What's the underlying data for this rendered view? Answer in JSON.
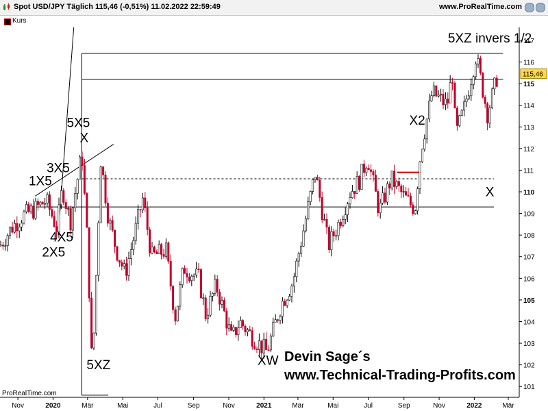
{
  "header": {
    "title": "Spot USD/JPY Täglich 115,46 (-0,51%) 11.02.2022 22:59:49",
    "site": "www.ProRealTime.com"
  },
  "legend": {
    "label": "Kurs"
  },
  "footer": {
    "source": "ProRealTime.com"
  },
  "colors": {
    "up": "#000000",
    "down": "#c0002a",
    "support": "#d00000",
    "axis": "#000000"
  },
  "chart_data": {
    "type": "candlestick",
    "x_tick_labels": [
      "Nov",
      "2020",
      "Mär",
      "Mai",
      "Jul",
      "Sep",
      "Nov",
      "2021",
      "Mär",
      "Mai",
      "Jul",
      "Sep",
      "Nov",
      "2022",
      "Mär"
    ],
    "y_tick_labels": [
      "101",
      "102",
      "103",
      "104",
      "105",
      "106",
      "107",
      "108",
      "109",
      "110",
      "111",
      "112",
      "113",
      "114",
      "115",
      "116",
      "117"
    ],
    "bold_y_ticks": [
      "105",
      "110",
      "115"
    ],
    "ylim": [
      100.5,
      117.6
    ],
    "xlim": [
      "2019-10-01",
      "2022-03-20"
    ],
    "current_price": "115,46",
    "price_path": [
      [
        "2019-10-01",
        107.5
      ],
      [
        "2019-10-20",
        108.3
      ],
      [
        "2019-11-10",
        108.9
      ],
      [
        "2019-12-01",
        109.2
      ],
      [
        "2019-12-20",
        109.6
      ],
      [
        "2020-01-08",
        108.3
      ],
      [
        "2020-01-17",
        110.2
      ],
      [
        "2020-01-31",
        108.6
      ],
      [
        "2020-02-20",
        111.8
      ],
      [
        "2020-03-01",
        107.5
      ],
      [
        "2020-03-09",
        101.6
      ],
      [
        "2020-03-24",
        111.5
      ],
      [
        "2020-04-06",
        108.8
      ],
      [
        "2020-04-20",
        107.3
      ],
      [
        "2020-05-05",
        106.2
      ],
      [
        "2020-05-15",
        107.3
      ],
      [
        "2020-06-05",
        109.7
      ],
      [
        "2020-06-20",
        107.0
      ],
      [
        "2020-07-15",
        107.3
      ],
      [
        "2020-07-31",
        104.2
      ],
      [
        "2020-08-15",
        106.5
      ],
      [
        "2020-09-10",
        106.0
      ],
      [
        "2020-09-22",
        104.3
      ],
      [
        "2020-10-10",
        105.7
      ],
      [
        "2020-11-06",
        103.2
      ],
      [
        "2020-11-20",
        104.0
      ],
      [
        "2020-12-15",
        103.2
      ],
      [
        "2021-01-06",
        102.6
      ],
      [
        "2021-01-31",
        104.8
      ],
      [
        "2021-02-20",
        105.8
      ],
      [
        "2021-03-31",
        110.9
      ],
      [
        "2021-04-23",
        107.5
      ],
      [
        "2021-05-10",
        108.5
      ],
      [
        "2021-05-31",
        110.0
      ],
      [
        "2021-06-15",
        110.5
      ],
      [
        "2021-06-30",
        111.6
      ],
      [
        "2021-07-20",
        109.1
      ],
      [
        "2021-08-10",
        110.6
      ],
      [
        "2021-08-31",
        109.8
      ],
      [
        "2021-09-20",
        109.2
      ],
      [
        "2021-09-30",
        111.9
      ],
      [
        "2021-10-20",
        114.6
      ],
      [
        "2021-11-15",
        114.0
      ],
      [
        "2021-11-24",
        115.5
      ],
      [
        "2021-11-30",
        112.6
      ],
      [
        "2021-12-15",
        113.9
      ],
      [
        "2022-01-04",
        116.3
      ],
      [
        "2022-01-24",
        113.6
      ],
      [
        "2022-02-11",
        115.46
      ]
    ],
    "annotations": [
      {
        "text": "5XZ invers 1/2",
        "x": "2022-01-28",
        "y": 116.9
      },
      {
        "text": "X2",
        "x": "2021-09-24",
        "y": 113.1
      },
      {
        "text": "X",
        "x": "2022-01-28",
        "y": 109.8
      },
      {
        "text": "X",
        "x": "2020-02-24",
        "y": 112.3
      },
      {
        "text": "5X5",
        "x": "2020-02-14",
        "y": 113.0
      },
      {
        "text": "3X5",
        "x": "2020-01-10",
        "y": 110.9
      },
      {
        "text": "1X5",
        "x": "2019-12-10",
        "y": 110.3
      },
      {
        "text": "4X5",
        "x": "2020-01-16",
        "y": 107.7
      },
      {
        "text": "2X5",
        "x": "2020-01-02",
        "y": 107.0
      },
      {
        "text": "5XZ",
        "x": "2020-03-20",
        "y": 101.8
      },
      {
        "text": "XW",
        "x": "2021-01-08",
        "y": 102.0
      }
    ],
    "watermark": [
      "Devin Sage´s",
      "www.Technical-Trading-Profits.com"
    ],
    "horizontal_lines": [
      {
        "y": 116.4,
        "from": "2020-02-20",
        "to": "2022-02-20"
      },
      {
        "y": 115.2,
        "from": "2020-02-20",
        "to": "2022-02-20"
      },
      {
        "y": 109.3,
        "from": "2019-12-01",
        "to": "2022-02-04"
      },
      {
        "y": 110.6,
        "from": "2020-02-20",
        "to": "2022-02-04",
        "dashed": true
      },
      {
        "y": 110.9,
        "from": "2021-08-20",
        "to": "2021-10-01",
        "support": true
      }
    ],
    "trend_lines": [
      [
        [
          "2019-12-01",
          109.8
        ],
        [
          "2020-04-15",
          112.2
        ]
      ],
      [
        [
          "2020-02-06",
          117.6
        ],
        [
          "2020-01-10",
          108.0
        ]
      ]
    ],
    "channel_box": [
      [
        "2020-02-20",
        116.4
      ],
      [
        "2020-02-20",
        100.6
      ],
      [
        "2020-04-06",
        100.6
      ]
    ]
  }
}
